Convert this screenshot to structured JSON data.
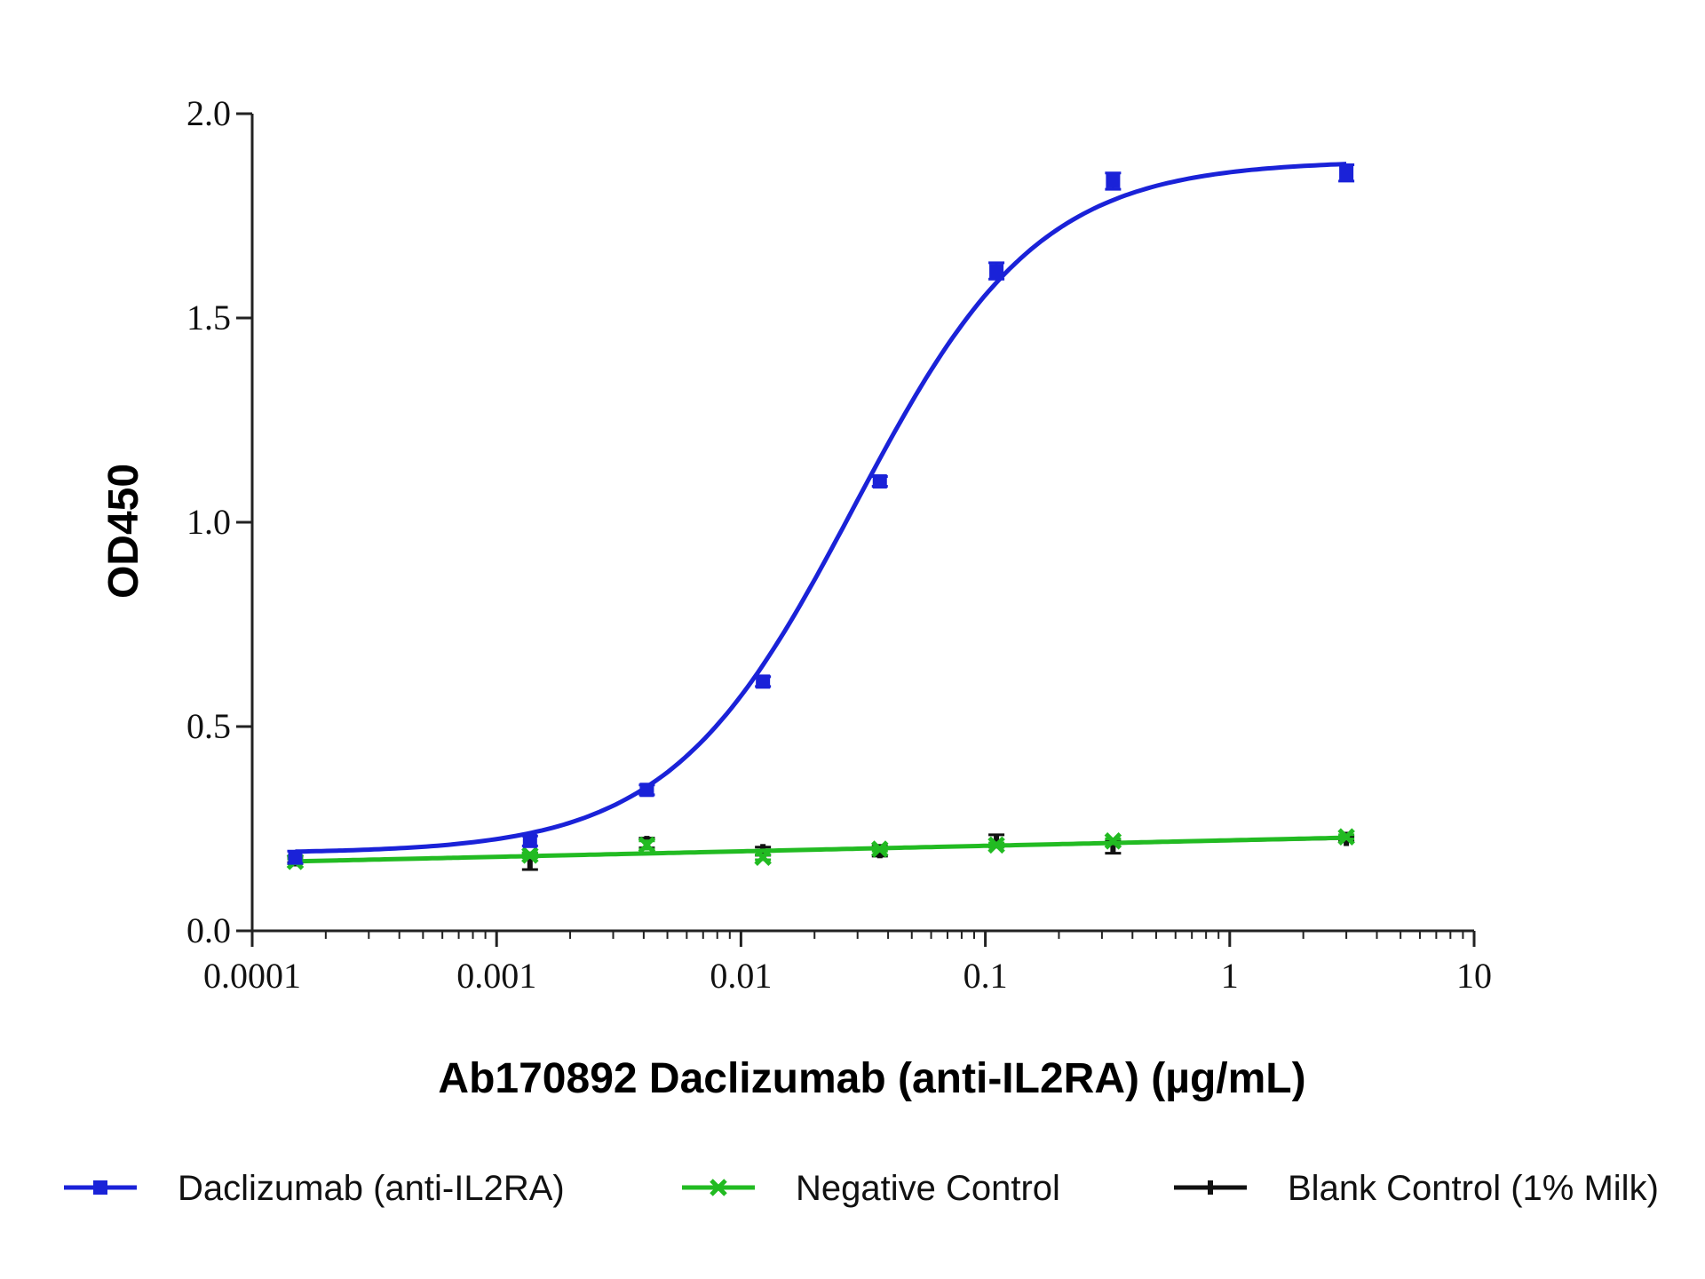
{
  "chart_data": {
    "type": "scatter",
    "title": "",
    "xlabel": "Ab170892 Daclizumab (anti-IL2RA) (µg/mL)",
    "ylabel": "OD450",
    "x_scale": "log",
    "xlim": [
      0.0001,
      10
    ],
    "ylim": [
      0.0,
      2.0
    ],
    "x_ticks": [
      "0.0001",
      "0.001",
      "0.01",
      "0.1",
      "1",
      "10"
    ],
    "y_ticks": [
      "0.0",
      "0.5",
      "1.0",
      "1.5",
      "2.0"
    ],
    "grid": false,
    "legend_position": "bottom",
    "fit_curves": true,
    "x": [
      0.00015,
      0.00137,
      0.00412,
      0.0123,
      0.037,
      0.111,
      0.333,
      3.0
    ],
    "series": [
      {
        "name": "Daclizumab (anti-IL2RA)",
        "color": "#1a22d8",
        "marker": "square",
        "values": [
          0.18,
          0.22,
          0.345,
          0.61,
          1.1,
          1.615,
          1.835,
          1.855
        ],
        "errors": [
          0.015,
          0.012,
          0.012,
          0.012,
          0.012,
          0.02,
          0.02,
          0.02
        ],
        "fit": "4PL",
        "fit_params": {
          "bottom": 0.19,
          "top": 1.885,
          "ec50": 0.029,
          "hill": 1.15
        }
      },
      {
        "name": "Negative Control",
        "color": "#22bb22",
        "marker": "x",
        "values": [
          0.17,
          0.185,
          0.21,
          0.18,
          0.2,
          0.21,
          0.22,
          0.23
        ],
        "errors": [
          0.006,
          0.006,
          0.01,
          0.006,
          0.005,
          0.005,
          0.005,
          0.005
        ],
        "fit": "linear",
        "fit_params": {
          "start": 0.17,
          "end": 0.228
        }
      },
      {
        "name": "Blank Control (1% Milk)",
        "color": "#111111",
        "marker": "bar",
        "values": [
          0.175,
          0.17,
          0.215,
          0.195,
          0.195,
          0.22,
          0.205,
          0.225
        ],
        "errors": [
          0.008,
          0.02,
          0.012,
          0.01,
          0.012,
          0.015,
          0.015,
          0.006
        ],
        "fit": "linear",
        "fit_params": {
          "start": 0.17,
          "end": 0.226
        }
      }
    ]
  }
}
